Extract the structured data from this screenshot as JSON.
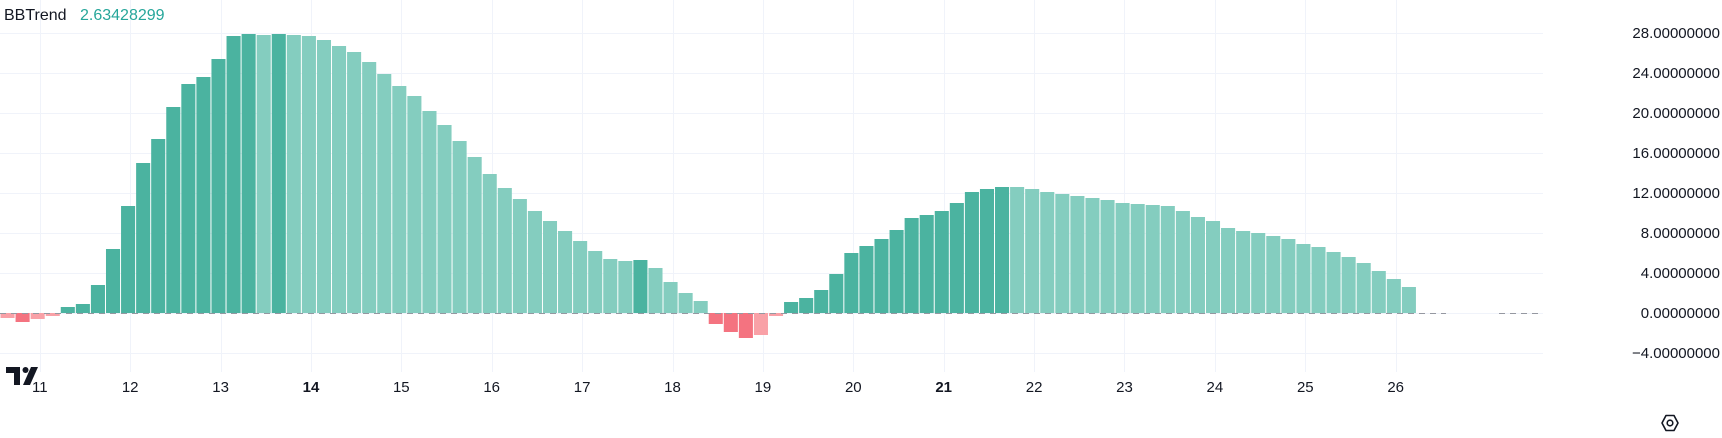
{
  "indicator": {
    "name": "BBTrend",
    "value": "2.63428299"
  },
  "colors": {
    "bull_strong": "#4BB3A0",
    "bull_weak": "#84CDBF",
    "bear_strong": "#F47380",
    "bear_weak": "#F9A1A7",
    "legend_value": "#26A69A",
    "grid": "#F0F3FA",
    "zero_line": "#9598A1",
    "axis_text": "#131722"
  },
  "chart_data": {
    "type": "bar",
    "title": "BBTrend",
    "y_range": [
      -6.0,
      30.5
    ],
    "y_ticks": [
      {
        "value": 28,
        "label": "28.00000000"
      },
      {
        "value": 24,
        "label": "24.00000000"
      },
      {
        "value": 20,
        "label": "20.00000000"
      },
      {
        "value": 16,
        "label": "16.00000000"
      },
      {
        "value": 12,
        "label": "12.00000000"
      },
      {
        "value": 8,
        "label": "8.00000000"
      },
      {
        "value": 4,
        "label": "4.00000000"
      },
      {
        "value": 0,
        "label": "0.00000000"
      },
      {
        "value": -4,
        "label": "−4.00000000"
      }
    ],
    "x_range": [
      10.56,
      27.63
    ],
    "x_ticks": [
      {
        "value": 11,
        "label": "11",
        "bold": false
      },
      {
        "value": 12,
        "label": "12",
        "bold": false
      },
      {
        "value": 13,
        "label": "13",
        "bold": false
      },
      {
        "value": 14,
        "label": "14",
        "bold": true
      },
      {
        "value": 15,
        "label": "15",
        "bold": false
      },
      {
        "value": 16,
        "label": "16",
        "bold": false
      },
      {
        "value": 17,
        "label": "17",
        "bold": false
      },
      {
        "value": 18,
        "label": "18",
        "bold": false
      },
      {
        "value": 19,
        "label": "19",
        "bold": false
      },
      {
        "value": 20,
        "label": "20",
        "bold": false
      },
      {
        "value": 21,
        "label": "21",
        "bold": true
      },
      {
        "value": 22,
        "label": "22",
        "bold": false
      },
      {
        "value": 23,
        "label": "23",
        "bold": false
      },
      {
        "value": 24,
        "label": "24",
        "bold": false
      },
      {
        "value": 25,
        "label": "25",
        "bold": false
      },
      {
        "value": 26,
        "label": "26",
        "bold": false
      }
    ],
    "bar_start_x": 10.56,
    "bar_step": 0.1667,
    "bars": [
      {
        "v": -0.5,
        "c": "bear_weak"
      },
      {
        "v": -0.9,
        "c": "bear_strong"
      },
      {
        "v": -0.6,
        "c": "bear_weak"
      },
      {
        "v": -0.3,
        "c": "bear_weak"
      },
      {
        "v": 0.6,
        "c": "bull_strong"
      },
      {
        "v": 0.9,
        "c": "bull_strong"
      },
      {
        "v": 2.8,
        "c": "bull_strong"
      },
      {
        "v": 6.4,
        "c": "bull_strong"
      },
      {
        "v": 10.7,
        "c": "bull_strong"
      },
      {
        "v": 15.0,
        "c": "bull_strong"
      },
      {
        "v": 17.4,
        "c": "bull_strong"
      },
      {
        "v": 20.6,
        "c": "bull_strong"
      },
      {
        "v": 22.9,
        "c": "bull_strong"
      },
      {
        "v": 23.6,
        "c": "bull_strong"
      },
      {
        "v": 25.4,
        "c": "bull_strong"
      },
      {
        "v": 27.7,
        "c": "bull_strong"
      },
      {
        "v": 27.9,
        "c": "bull_strong"
      },
      {
        "v": 27.8,
        "c": "bull_weak"
      },
      {
        "v": 27.9,
        "c": "bull_strong"
      },
      {
        "v": 27.8,
        "c": "bull_weak"
      },
      {
        "v": 27.7,
        "c": "bull_weak"
      },
      {
        "v": 27.3,
        "c": "bull_weak"
      },
      {
        "v": 26.7,
        "c": "bull_weak"
      },
      {
        "v": 26.1,
        "c": "bull_weak"
      },
      {
        "v": 25.1,
        "c": "bull_weak"
      },
      {
        "v": 23.9,
        "c": "bull_weak"
      },
      {
        "v": 22.7,
        "c": "bull_weak"
      },
      {
        "v": 21.7,
        "c": "bull_weak"
      },
      {
        "v": 20.2,
        "c": "bull_weak"
      },
      {
        "v": 18.8,
        "c": "bull_weak"
      },
      {
        "v": 17.2,
        "c": "bull_weak"
      },
      {
        "v": 15.6,
        "c": "bull_weak"
      },
      {
        "v": 13.9,
        "c": "bull_weak"
      },
      {
        "v": 12.5,
        "c": "bull_weak"
      },
      {
        "v": 11.4,
        "c": "bull_weak"
      },
      {
        "v": 10.2,
        "c": "bull_weak"
      },
      {
        "v": 9.2,
        "c": "bull_weak"
      },
      {
        "v": 8.2,
        "c": "bull_weak"
      },
      {
        "v": 7.2,
        "c": "bull_weak"
      },
      {
        "v": 6.2,
        "c": "bull_weak"
      },
      {
        "v": 5.4,
        "c": "bull_weak"
      },
      {
        "v": 5.2,
        "c": "bull_weak"
      },
      {
        "v": 5.3,
        "c": "bull_strong"
      },
      {
        "v": 4.5,
        "c": "bull_weak"
      },
      {
        "v": 3.1,
        "c": "bull_weak"
      },
      {
        "v": 2.0,
        "c": "bull_weak"
      },
      {
        "v": 1.2,
        "c": "bull_weak"
      },
      {
        "v": -1.1,
        "c": "bear_strong"
      },
      {
        "v": -1.9,
        "c": "bear_strong"
      },
      {
        "v": -2.5,
        "c": "bear_strong"
      },
      {
        "v": -2.2,
        "c": "bear_weak"
      },
      {
        "v": -0.3,
        "c": "bear_weak"
      },
      {
        "v": 1.1,
        "c": "bull_strong"
      },
      {
        "v": 1.5,
        "c": "bull_strong"
      },
      {
        "v": 2.3,
        "c": "bull_strong"
      },
      {
        "v": 3.9,
        "c": "bull_strong"
      },
      {
        "v": 6.0,
        "c": "bull_strong"
      },
      {
        "v": 6.7,
        "c": "bull_strong"
      },
      {
        "v": 7.4,
        "c": "bull_strong"
      },
      {
        "v": 8.3,
        "c": "bull_strong"
      },
      {
        "v": 9.5,
        "c": "bull_strong"
      },
      {
        "v": 9.8,
        "c": "bull_strong"
      },
      {
        "v": 10.2,
        "c": "bull_strong"
      },
      {
        "v": 11.0,
        "c": "bull_strong"
      },
      {
        "v": 12.1,
        "c": "bull_strong"
      },
      {
        "v": 12.4,
        "c": "bull_strong"
      },
      {
        "v": 12.6,
        "c": "bull_strong"
      },
      {
        "v": 12.6,
        "c": "bull_weak"
      },
      {
        "v": 12.4,
        "c": "bull_weak"
      },
      {
        "v": 12.1,
        "c": "bull_weak"
      },
      {
        "v": 11.9,
        "c": "bull_weak"
      },
      {
        "v": 11.7,
        "c": "bull_weak"
      },
      {
        "v": 11.5,
        "c": "bull_weak"
      },
      {
        "v": 11.3,
        "c": "bull_weak"
      },
      {
        "v": 11.0,
        "c": "bull_weak"
      },
      {
        "v": 10.9,
        "c": "bull_weak"
      },
      {
        "v": 10.8,
        "c": "bull_weak"
      },
      {
        "v": 10.7,
        "c": "bull_weak"
      },
      {
        "v": 10.2,
        "c": "bull_weak"
      },
      {
        "v": 9.6,
        "c": "bull_weak"
      },
      {
        "v": 9.2,
        "c": "bull_weak"
      },
      {
        "v": 8.5,
        "c": "bull_weak"
      },
      {
        "v": 8.2,
        "c": "bull_weak"
      },
      {
        "v": 8.0,
        "c": "bull_weak"
      },
      {
        "v": 7.7,
        "c": "bull_weak"
      },
      {
        "v": 7.4,
        "c": "bull_weak"
      },
      {
        "v": 6.9,
        "c": "bull_weak"
      },
      {
        "v": 6.6,
        "c": "bull_weak"
      },
      {
        "v": 6.1,
        "c": "bull_weak"
      },
      {
        "v": 5.6,
        "c": "bull_weak"
      },
      {
        "v": 5.0,
        "c": "bull_weak"
      },
      {
        "v": 4.2,
        "c": "bull_weak"
      },
      {
        "v": 3.4,
        "c": "bull_weak"
      },
      {
        "v": 2.6,
        "c": "bull_weak"
      }
    ]
  }
}
